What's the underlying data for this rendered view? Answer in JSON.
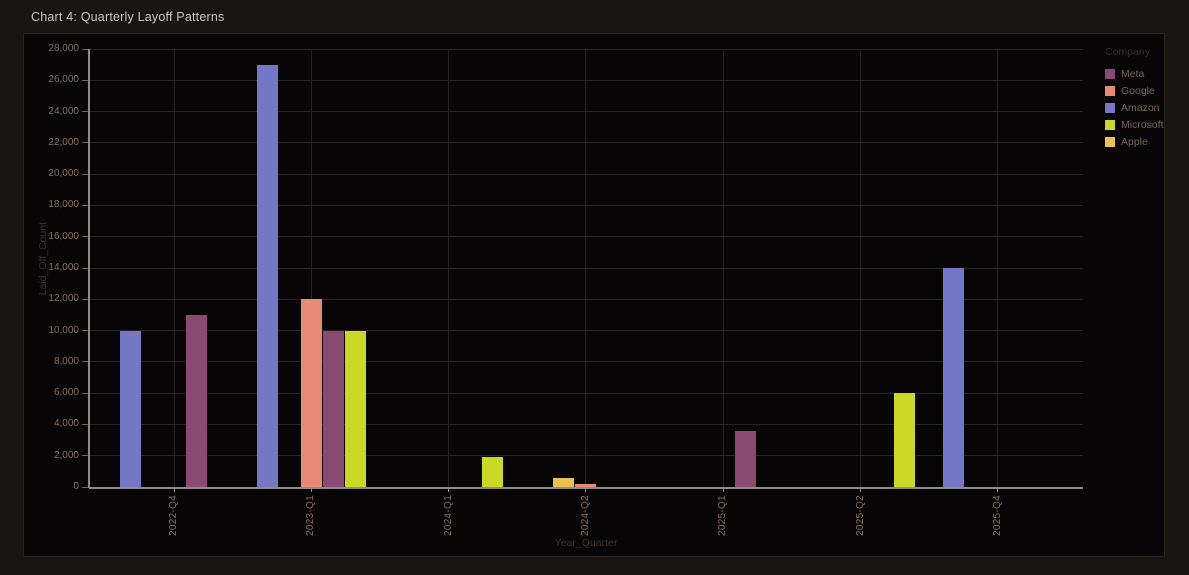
{
  "page": {
    "title": "Chart 4: Quarterly Layoff Patterns"
  },
  "colors": {
    "page_background": "#191510",
    "panel_background": "#070505",
    "title_text": "#cbc5bf",
    "tick_label_text": "#857060",
    "axis_title_text": "#3c3129",
    "legend_label_text": "#7a6758",
    "spine": "#8f8d8b",
    "gridline": "#262222"
  },
  "chart_data": {
    "type": "bar",
    "title": "Chart 4: Quarterly Layoff Patterns",
    "xlabel": "Year_Quarter",
    "ylabel": "Laid_Off_Count",
    "legend_title": "Company",
    "legend_position": "top-right",
    "grid": true,
    "ylim": [
      0,
      28000
    ],
    "ytick_step": 2000,
    "categories": [
      "2022-Q4",
      "2023-Q1",
      "2024-Q1",
      "2024-Q2",
      "2025-Q1",
      "2025-Q2",
      "2025-Q4"
    ],
    "series": [
      {
        "name": "Meta",
        "color": "#8b4a72",
        "values": [
          11000,
          10000,
          0,
          0,
          3600,
          0,
          0
        ]
      },
      {
        "name": "Google",
        "color": "#e88a74",
        "values": [
          0,
          12000,
          0,
          200,
          0,
          0,
          0
        ]
      },
      {
        "name": "Amazon",
        "color": "#7477c6",
        "values": [
          10000,
          27000,
          0,
          0,
          0,
          0,
          14000
        ]
      },
      {
        "name": "Microsoft",
        "color": "#ccd826",
        "values": [
          0,
          10000,
          1900,
          0,
          0,
          6000,
          0
        ]
      },
      {
        "name": "Apple",
        "color": "#eec04f",
        "values": [
          0,
          0,
          0,
          600,
          0,
          0,
          0
        ]
      }
    ],
    "bar_group_order": [
      "Amazon",
      "Apple",
      "Google",
      "Meta",
      "Microsoft"
    ]
  }
}
